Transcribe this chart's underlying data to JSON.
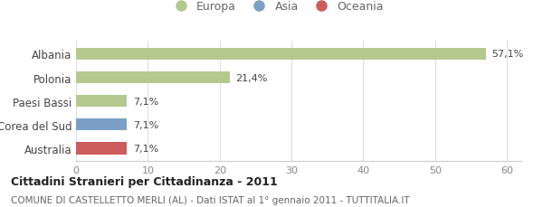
{
  "categories": [
    "Albania",
    "Polonia",
    "Paesi Bassi",
    "Corea del Sud",
    "Australia"
  ],
  "values": [
    57.1,
    21.4,
    7.1,
    7.1,
    7.1
  ],
  "labels": [
    "57,1%",
    "21,4%",
    "7,1%",
    "7,1%",
    "7,1%"
  ],
  "bar_colors": [
    "#b5c98e",
    "#b5c98e",
    "#b5c98e",
    "#7b9fc7",
    "#cd5c5c"
  ],
  "legend": [
    {
      "label": "Europa",
      "color": "#b5c98e"
    },
    {
      "label": "Asia",
      "color": "#7b9fc7"
    },
    {
      "label": "Oceania",
      "color": "#cd5c5c"
    }
  ],
  "xlim": [
    0,
    62
  ],
  "xticks": [
    0,
    10,
    20,
    30,
    40,
    50,
    60
  ],
  "title": "Cittadini Stranieri per Cittadinanza - 2011",
  "subtitle": "COMUNE DI CASTELLETTO MERLI (AL) - Dati ISTAT al 1° gennaio 2011 - TUTTITALIA.IT",
  "background_color": "#ffffff",
  "bar_height": 0.5
}
